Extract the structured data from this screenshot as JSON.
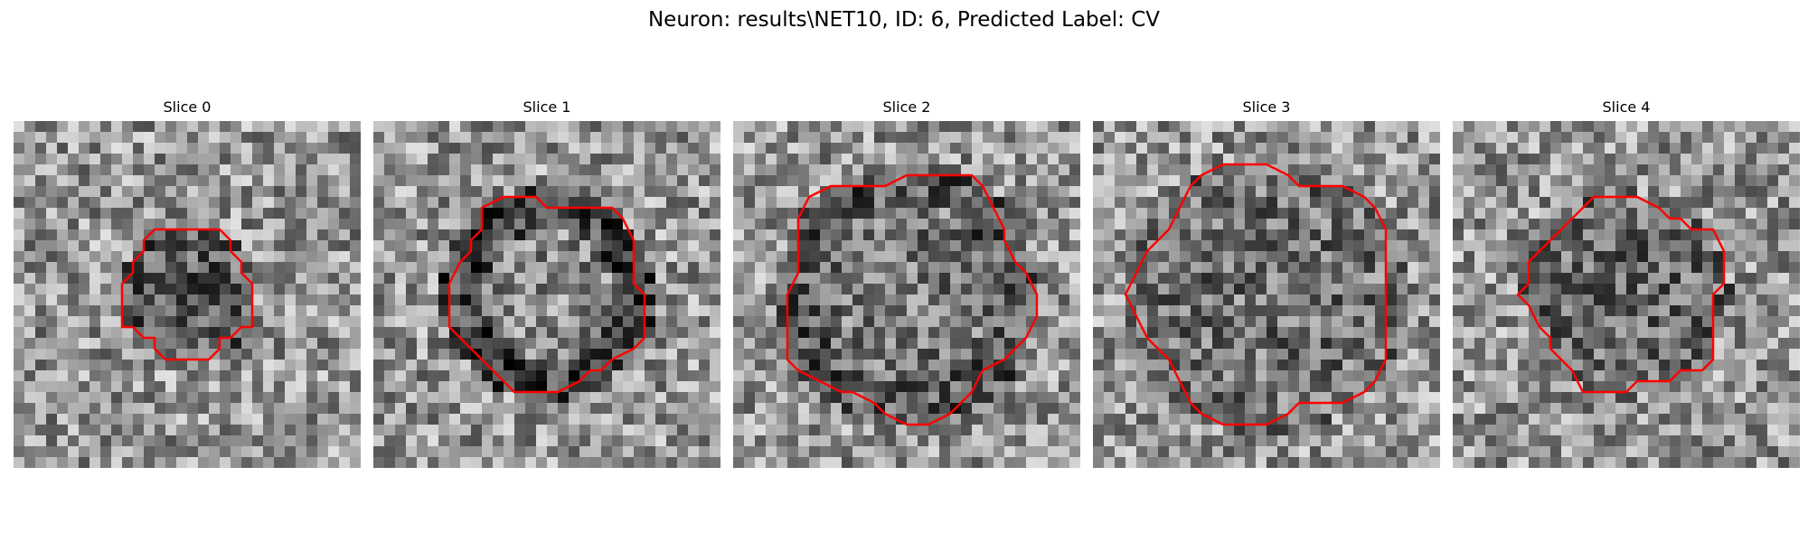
{
  "figure": {
    "title": "Neuron: results\\NET10, ID: 6, Predicted Label: CV"
  },
  "panels": [
    {
      "title": "Slice 0",
      "seed": 11,
      "contour_radius": 0.2,
      "style": "blob"
    },
    {
      "title": "Slice 1",
      "seed": 23,
      "contour_radius": 0.3,
      "style": "ring"
    },
    {
      "title": "Slice 2",
      "seed": 37,
      "contour_radius": 0.38,
      "style": "ring-soft"
    },
    {
      "title": "Slice 3",
      "seed": 41,
      "contour_radius": 0.4,
      "style": "flat"
    },
    {
      "title": "Slice 4",
      "seed": 53,
      "contour_radius": 0.3,
      "style": "flat-dark"
    }
  ],
  "colors": {
    "contour": "#ff0000"
  }
}
